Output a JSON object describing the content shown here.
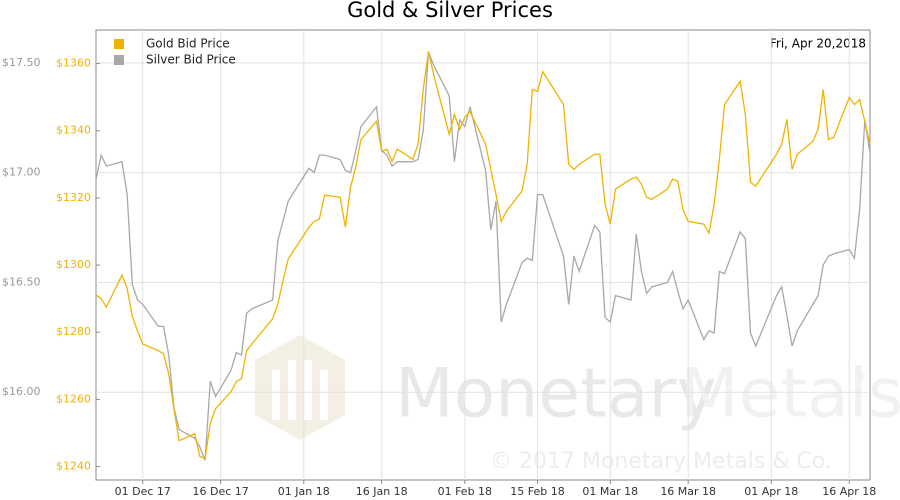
{
  "chart_data": {
    "type": "line",
    "title": "Gold & Silver Prices",
    "date_label": "Fri, Apr 20,2018",
    "watermark": {
      "brand_1": "Monetary",
      "brand_2": "Metals",
      "mark": "®",
      "copyright": "© 2017 Monetary Metals & Co."
    },
    "x": [
      "2017-11-22",
      "2017-11-23",
      "2017-11-24",
      "2017-11-27",
      "2017-11-28",
      "2017-11-29",
      "2017-11-30",
      "2017-12-01",
      "2017-12-04",
      "2017-12-05",
      "2017-12-06",
      "2017-12-07",
      "2017-12-08",
      "2017-12-11",
      "2017-12-12",
      "2017-12-13",
      "2017-12-14",
      "2017-12-15",
      "2017-12-18",
      "2017-12-19",
      "2017-12-20",
      "2017-12-21",
      "2017-12-22",
      "2017-12-26",
      "2017-12-27",
      "2017-12-28",
      "2017-12-29",
      "2018-01-02",
      "2018-01-03",
      "2018-01-04",
      "2018-01-05",
      "2018-01-08",
      "2018-01-09",
      "2018-01-10",
      "2018-01-11",
      "2018-01-12",
      "2018-01-15",
      "2018-01-16",
      "2018-01-17",
      "2018-01-18",
      "2018-01-19",
      "2018-01-22",
      "2018-01-23",
      "2018-01-24",
      "2018-01-25",
      "2018-01-26",
      "2018-01-29",
      "2018-01-30",
      "2018-01-31",
      "2018-02-01",
      "2018-02-02",
      "2018-02-05",
      "2018-02-06",
      "2018-02-07",
      "2018-02-08",
      "2018-02-09",
      "2018-02-12",
      "2018-02-13",
      "2018-02-14",
      "2018-02-15",
      "2018-02-16",
      "2018-02-20",
      "2018-02-21",
      "2018-02-22",
      "2018-02-23",
      "2018-02-26",
      "2018-02-27",
      "2018-02-28",
      "2018-03-01",
      "2018-03-02",
      "2018-03-05",
      "2018-03-06",
      "2018-03-07",
      "2018-03-08",
      "2018-03-09",
      "2018-03-12",
      "2018-03-13",
      "2018-03-14",
      "2018-03-15",
      "2018-03-16",
      "2018-03-19",
      "2018-03-20",
      "2018-03-21",
      "2018-03-22",
      "2018-03-23",
      "2018-03-26",
      "2018-03-27",
      "2018-03-28",
      "2018-03-29",
      "2018-04-02",
      "2018-04-03",
      "2018-04-04",
      "2018-04-05",
      "2018-04-06",
      "2018-04-09",
      "2018-04-10",
      "2018-04-11",
      "2018-04-12",
      "2018-04-13",
      "2018-04-16",
      "2018-04-17",
      "2018-04-18",
      "2018-04-19",
      "2018-04-20"
    ],
    "series": [
      {
        "name": "Gold Bid Price",
        "color": "#f0b400",
        "axis": "y",
        "values": [
          1291.1,
          1290,
          1287.5,
          1297,
          1293,
          1284.6,
          1280.4,
          1276.5,
          1274.5,
          1273.6,
          1267.6,
          1257.2,
          1247.7,
          1249.8,
          1243,
          1242.4,
          1252.8,
          1257.2,
          1262.3,
          1265.3,
          1266.2,
          1274.5,
          1276.5,
          1284,
          1288.4,
          1295.3,
          1301.8,
          1311.3,
          1313,
          1313.7,
          1320.8,
          1320.2,
          1311.3,
          1323.2,
          1329.1,
          1337.4,
          1342.8,
          1333.9,
          1334.5,
          1330.9,
          1334.5,
          1331.5,
          1336,
          1352.3,
          1363.6,
          1356.7,
          1338.9,
          1344.9,
          1340.4,
          1344,
          1345.7,
          1336,
          1328.5,
          1321.1,
          1313,
          1316,
          1322,
          1330,
          1352.3,
          1351.7,
          1357.6,
          1347.8,
          1330,
          1328.5,
          1330,
          1333,
          1333,
          1318.1,
          1312.2,
          1322.6,
          1325.6,
          1326.2,
          1324.1,
          1320.2,
          1319.6,
          1322.6,
          1325.6,
          1325,
          1316.6,
          1313,
          1312.2,
          1309.5,
          1318.1,
          1331.5,
          1347.8,
          1354.7,
          1344.9,
          1324.7,
          1323.5,
          1333,
          1336,
          1343.4,
          1328.5,
          1333,
          1336.8,
          1340.4,
          1352.3,
          1337.4,
          1338,
          1349.9,
          1347.8,
          1349.3,
          1342.8,
          1336
        ]
      },
      {
        "name": "Silver Bid Price",
        "color": "#a8a8a8",
        "axis": "y2",
        "values": [
          16.97,
          17.08,
          17.03,
          17.05,
          16.9,
          16.49,
          16.42,
          16.4,
          16.3,
          16.3,
          16.17,
          15.93,
          15.83,
          15.79,
          15.75,
          15.69,
          16.05,
          15.98,
          16.1,
          16.18,
          16.17,
          16.36,
          16.38,
          16.42,
          16.69,
          16.78,
          16.87,
          17.02,
          17,
          17.08,
          17.08,
          17.06,
          17.01,
          17,
          17.1,
          17.21,
          17.3,
          17.1,
          17.08,
          17.03,
          17.05,
          17.05,
          17.06,
          17.19,
          17.55,
          17.49,
          17.35,
          17.05,
          17.24,
          17.21,
          17.3,
          17.01,
          16.74,
          16.87,
          16.32,
          16.4,
          16.59,
          16.61,
          16.6,
          16.9,
          16.9,
          16.62,
          16.4,
          16.62,
          16.55,
          16.76,
          16.73,
          16.34,
          16.32,
          16.44,
          16.42,
          16.72,
          16.55,
          16.45,
          16.48,
          16.5,
          16.55,
          16.46,
          16.38,
          16.42,
          16.24,
          16.28,
          16.27,
          16.55,
          16.54,
          16.73,
          16.7,
          16.27,
          16.21,
          16.44,
          16.48,
          16.35,
          16.21,
          16.28,
          16.4,
          16.44,
          16.58,
          16.62,
          16.63,
          16.65,
          16.61,
          16.83,
          17.24,
          17.09
        ]
      }
    ],
    "xlim": [
      "2017-11-22",
      "2018-04-20"
    ],
    "xticks": [
      {
        "value": "2017-12-01",
        "label": "01 Dec 17"
      },
      {
        "value": "2017-12-16",
        "label": "16 Dec 17"
      },
      {
        "value": "2018-01-01",
        "label": "01 Jan 18"
      },
      {
        "value": "2018-01-16",
        "label": "16 Jan 18"
      },
      {
        "value": "2018-02-01",
        "label": "01 Feb 18"
      },
      {
        "value": "2018-02-15",
        "label": "15 Feb 18"
      },
      {
        "value": "2018-03-01",
        "label": "01 Mar 18"
      },
      {
        "value": "2018-03-16",
        "label": "16 Mar 18"
      },
      {
        "value": "2018-04-01",
        "label": "01 Apr 18"
      },
      {
        "value": "2018-04-16",
        "label": "16 Apr 18"
      }
    ],
    "ylim": [
      1236,
      1370
    ],
    "yticks": [
      {
        "value": 1240,
        "label": "$1240"
      },
      {
        "value": 1260,
        "label": "$1260"
      },
      {
        "value": 1280,
        "label": "$1280"
      },
      {
        "value": 1300,
        "label": "$1300"
      },
      {
        "value": 1320,
        "label": "$1320"
      },
      {
        "value": 1340,
        "label": "$1340"
      },
      {
        "value": 1360,
        "label": "$1360"
      }
    ],
    "y2lim": [
      15.6,
      17.65
    ],
    "y2ticks": [
      {
        "value": 16,
        "label": "$16.00"
      },
      {
        "value": 16.5,
        "label": "$16.50"
      },
      {
        "value": 17,
        "label": "$17.00"
      },
      {
        "value": 17.5,
        "label": "$17.50"
      }
    ],
    "grid": true,
    "legend": "top-left"
  }
}
